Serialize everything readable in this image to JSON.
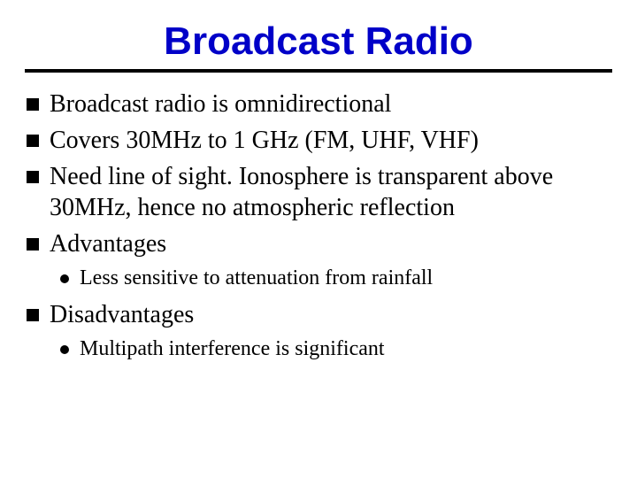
{
  "title": "Broadcast Radio",
  "colors": {
    "title": "#0000c8",
    "rule": "#000000",
    "bullet_square": "#000000",
    "bullet_dot": "#000000",
    "background": "#ffffff",
    "body_text": "#000000"
  },
  "typography": {
    "title_font": "Arial",
    "title_fontsize_pt": 33,
    "title_weight": 700,
    "body_font": "Times New Roman",
    "level1_fontsize_pt": 21,
    "level2_fontsize_pt": 18
  },
  "bullets": [
    {
      "level": 1,
      "text": "Broadcast radio is omnidirectional"
    },
    {
      "level": 1,
      "text": "Covers 30MHz to 1 GHz (FM, UHF, VHF)"
    },
    {
      "level": 1,
      "text": "Need line of sight. Ionosphere is transparent above 30MHz, hence no atmospheric reflection"
    },
    {
      "level": 1,
      "text": "Advantages"
    },
    {
      "level": 2,
      "text": "Less sensitive to attenuation from rainfall"
    },
    {
      "level": 1,
      "text": "Disadvantages"
    },
    {
      "level": 2,
      "text": "Multipath interference is significant"
    }
  ]
}
